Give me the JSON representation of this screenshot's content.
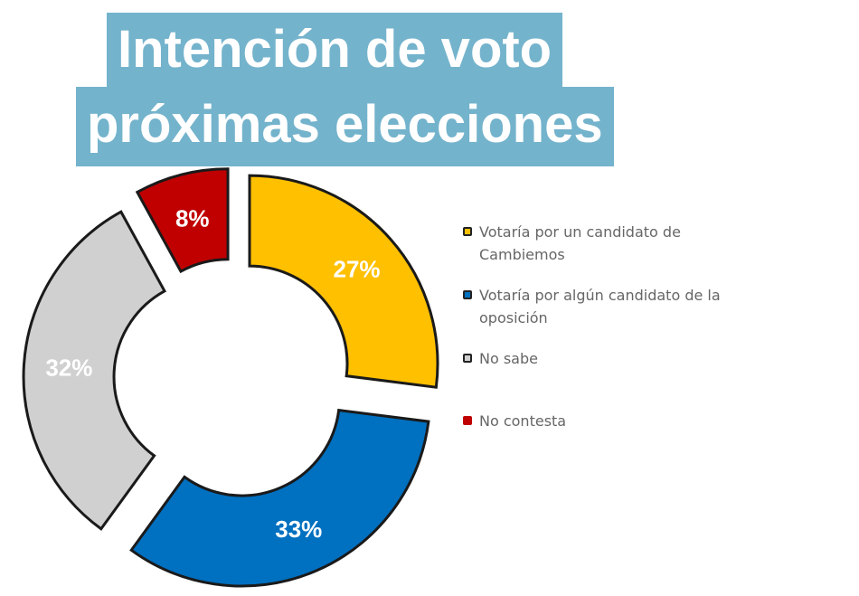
{
  "chart_data": {
    "type": "pie",
    "variant": "donut-exploded",
    "title": [
      "Intención de voto",
      "próximas elecciones"
    ],
    "categories": [
      "Votaría por un candidato de Cambiemos",
      "Votaría por algún candidato de la oposición",
      "No sabe",
      "No contesta"
    ],
    "values": [
      27,
      33,
      32,
      8
    ],
    "labels": [
      "27%",
      "33%",
      "32%",
      "8%"
    ],
    "colors": [
      "#ffc000",
      "#0070c0",
      "#d0d0d0",
      "#c00000"
    ],
    "label_colors": [
      "#ffffff",
      "#ffffff",
      "#ffffff",
      "#ffffff"
    ],
    "legend_position": "right"
  },
  "legend": [
    {
      "text": "Votaría por un candidato de Cambiemos"
    },
    {
      "text": "Votaría por algún candidato de la oposición"
    },
    {
      "text": "No sabe"
    },
    {
      "text": "No contesta"
    }
  ]
}
